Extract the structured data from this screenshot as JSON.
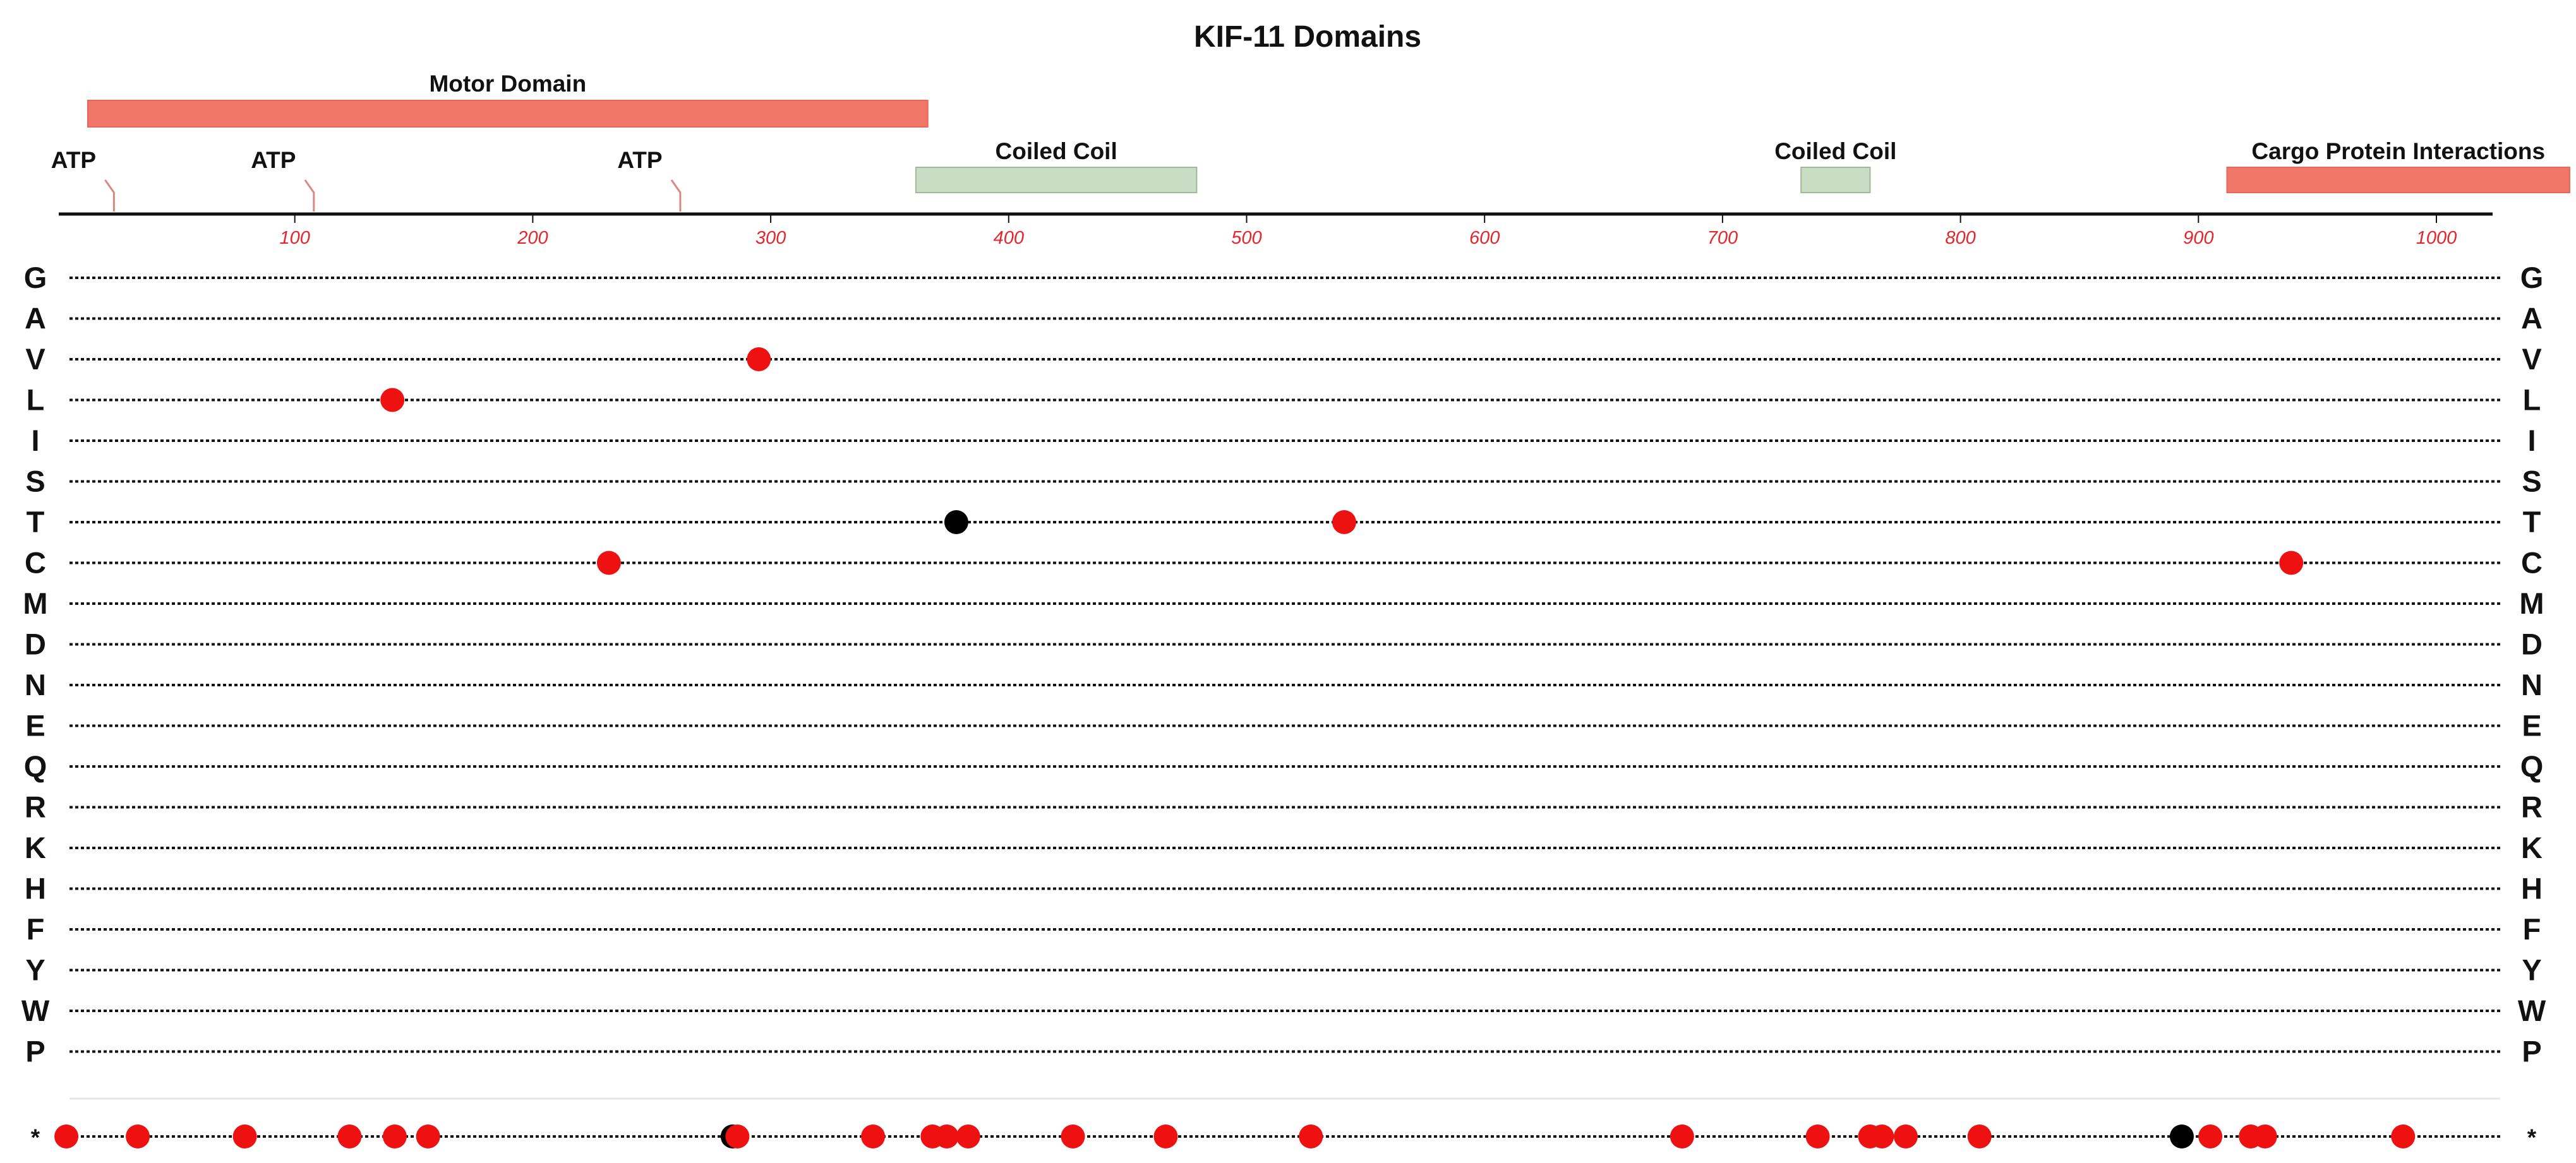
{
  "chart_data": {
    "type": "scatter",
    "title": "KIF-11 Domains",
    "xlim": [
      0,
      1056
    ],
    "x_ticks": [
      100,
      200,
      300,
      400,
      500,
      600,
      700,
      800,
      900,
      1000
    ],
    "domains": [
      {
        "label": "Motor Domain",
        "start": 13,
        "end": 366,
        "color": "#f0766a"
      },
      {
        "label": "Coiled Coil",
        "start": 361,
        "end": 479,
        "color": "#c9dcc4"
      },
      {
        "label": "Coiled Coil",
        "start": 733,
        "end": 762,
        "color": "#c9dcc4"
      },
      {
        "label": "Cargo Protein Interactions",
        "start": 912,
        "end": 1056,
        "color": "#f0766a"
      }
    ],
    "atp_sites": [
      {
        "label": "ATP",
        "position": 24
      },
      {
        "label": "ATP",
        "position": 108
      },
      {
        "label": "ATP",
        "position": 262
      }
    ],
    "rows": [
      "G",
      "A",
      "V",
      "L",
      "I",
      "S",
      "T",
      "C",
      "M",
      "D",
      "N",
      "E",
      "Q",
      "R",
      "K",
      "H",
      "F",
      "Y",
      "W",
      "P"
    ],
    "stop_row_label": "*",
    "colors": {
      "mutation": "#ee1111",
      "other": "#000000",
      "tick": "#e4262c",
      "line": "#111111"
    },
    "points": [
      {
        "row": "V",
        "x": 295,
        "color": "red"
      },
      {
        "row": "L",
        "x": 141,
        "color": "red"
      },
      {
        "row": "T",
        "x": 378,
        "color": "black"
      },
      {
        "row": "T",
        "x": 541,
        "color": "red"
      },
      {
        "row": "C",
        "x": 232,
        "color": "red"
      },
      {
        "row": "C",
        "x": 939,
        "color": "red"
      },
      {
        "row": "*",
        "x": 4,
        "color": "red"
      },
      {
        "row": "*",
        "x": 34,
        "color": "red"
      },
      {
        "row": "*",
        "x": 79,
        "color": "red"
      },
      {
        "row": "*",
        "x": 123,
        "color": "red"
      },
      {
        "row": "*",
        "x": 142,
        "color": "red"
      },
      {
        "row": "*",
        "x": 156,
        "color": "red"
      },
      {
        "row": "*",
        "x": 284,
        "color": "black"
      },
      {
        "row": "*",
        "x": 286,
        "color": "red"
      },
      {
        "row": "*",
        "x": 343,
        "color": "red"
      },
      {
        "row": "*",
        "x": 368,
        "color": "red"
      },
      {
        "row": "*",
        "x": 374,
        "color": "red"
      },
      {
        "row": "*",
        "x": 383,
        "color": "red"
      },
      {
        "row": "*",
        "x": 427,
        "color": "red"
      },
      {
        "row": "*",
        "x": 466,
        "color": "red"
      },
      {
        "row": "*",
        "x": 527,
        "color": "red"
      },
      {
        "row": "*",
        "x": 683,
        "color": "red"
      },
      {
        "row": "*",
        "x": 740,
        "color": "red"
      },
      {
        "row": "*",
        "x": 762,
        "color": "red"
      },
      {
        "row": "*",
        "x": 767,
        "color": "red"
      },
      {
        "row": "*",
        "x": 777,
        "color": "red"
      },
      {
        "row": "*",
        "x": 808,
        "color": "red"
      },
      {
        "row": "*",
        "x": 893,
        "color": "black"
      },
      {
        "row": "*",
        "x": 905,
        "color": "red"
      },
      {
        "row": "*",
        "x": 922,
        "color": "red"
      },
      {
        "row": "*",
        "x": 928,
        "color": "red"
      },
      {
        "row": "*",
        "x": 986,
        "color": "red"
      }
    ]
  }
}
